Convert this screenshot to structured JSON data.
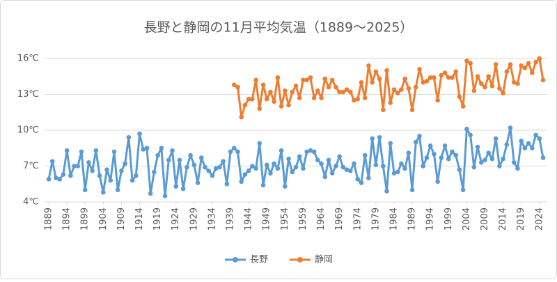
{
  "chart_data": {
    "type": "line",
    "title": "長野と静岡の11月平均気温（1889～2025）",
    "x": [
      1889,
      1890,
      1891,
      1892,
      1893,
      1894,
      1895,
      1896,
      1897,
      1898,
      1899,
      1900,
      1901,
      1902,
      1903,
      1904,
      1905,
      1906,
      1907,
      1908,
      1909,
      1910,
      1911,
      1912,
      1913,
      1914,
      1915,
      1916,
      1917,
      1918,
      1919,
      1920,
      1921,
      1922,
      1923,
      1924,
      1925,
      1926,
      1927,
      1928,
      1929,
      1930,
      1931,
      1932,
      1933,
      1934,
      1935,
      1936,
      1937,
      1938,
      1939,
      1940,
      1941,
      1942,
      1943,
      1944,
      1945,
      1946,
      1947,
      1948,
      1949,
      1950,
      1951,
      1952,
      1953,
      1954,
      1955,
      1956,
      1957,
      1958,
      1959,
      1960,
      1961,
      1962,
      1963,
      1964,
      1965,
      1966,
      1967,
      1968,
      1969,
      1970,
      1971,
      1972,
      1973,
      1974,
      1975,
      1976,
      1977,
      1978,
      1979,
      1980,
      1981,
      1982,
      1983,
      1984,
      1985,
      1986,
      1987,
      1988,
      1989,
      1990,
      1991,
      1992,
      1993,
      1994,
      1995,
      1996,
      1997,
      1998,
      1999,
      2000,
      2001,
      2002,
      2003,
      2004,
      2005,
      2006,
      2007,
      2008,
      2009,
      2010,
      2011,
      2012,
      2013,
      2014,
      2015,
      2016,
      2017,
      2018,
      2019,
      2020,
      2021,
      2022,
      2023,
      2024,
      2025
    ],
    "xlim": [
      1889,
      2025
    ],
    "xticks": [
      1889,
      1894,
      1899,
      1904,
      1909,
      1914,
      1919,
      1924,
      1929,
      1934,
      1939,
      1944,
      1949,
      1954,
      1959,
      1964,
      1969,
      1974,
      1979,
      1984,
      1989,
      1994,
      1999,
      2004,
      2009,
      2014,
      2019,
      2024
    ],
    "ylim": [
      4,
      16
    ],
    "yticks": [
      {
        "value": 4,
        "label": "4℃"
      },
      {
        "value": 7,
        "label": "7℃"
      },
      {
        "value": 10,
        "label": "10℃"
      },
      {
        "value": 13,
        "label": "13℃"
      },
      {
        "value": 16,
        "label": "16℃"
      }
    ],
    "grid": true,
    "legend": "bottom",
    "series": [
      {
        "name": "長野",
        "color": "#5b9bd5",
        "values": [
          5.9,
          7.4,
          6.0,
          5.9,
          6.3,
          8.3,
          6.2,
          7.0,
          7.0,
          8.2,
          5.0,
          7.3,
          6.6,
          8.3,
          6.2,
          4.8,
          6.7,
          5.8,
          8.2,
          5.0,
          6.6,
          7.2,
          9.4,
          5.8,
          6.2,
          9.7,
          8.4,
          8.5,
          4.7,
          6.5,
          7.9,
          8.5,
          4.5,
          7.5,
          8.3,
          5.3,
          7.5,
          5.1,
          6.9,
          7.9,
          7.1,
          5.6,
          7.7,
          6.9,
          6.6,
          6.2,
          6.8,
          6.9,
          7.4,
          5.5,
          8.2,
          8.5,
          8.2,
          5.7,
          6.3,
          6.6,
          7.0,
          6.8,
          8.9,
          5.4,
          7.1,
          6.4,
          7.2,
          6.8,
          8.3,
          5.3,
          7.6,
          6.5,
          6.9,
          7.8,
          6.8,
          8.2,
          8.3,
          8.2,
          7.5,
          7.2,
          6.1,
          7.5,
          6.4,
          7.0,
          7.8,
          6.9,
          6.7,
          6.6,
          7.2,
          5.9,
          5.6,
          7.9,
          6.0,
          9.3,
          7.1,
          9.4,
          7.0,
          4.9,
          8.9,
          6.4,
          6.5,
          7.2,
          6.8,
          8.1,
          5.0,
          9.0,
          9.5,
          7.0,
          7.7,
          8.7,
          8.0,
          5.7,
          7.7,
          8.7,
          7.6,
          8.2,
          7.9,
          6.7,
          5.0,
          10.1,
          9.6,
          6.9,
          8.6,
          7.3,
          7.5,
          8.1,
          7.6,
          9.3,
          7.0,
          7.6,
          8.8,
          10.2,
          7.3,
          6.8,
          9.1,
          8.5,
          8.9,
          8.5,
          9.6,
          9.3,
          7.7
        ]
      },
      {
        "name": "静岡",
        "color": "#ed7d31",
        "values": [
          null,
          null,
          null,
          null,
          null,
          null,
          null,
          null,
          null,
          null,
          null,
          null,
          null,
          null,
          null,
          null,
          null,
          null,
          null,
          null,
          null,
          null,
          null,
          null,
          null,
          null,
          null,
          null,
          null,
          null,
          null,
          null,
          null,
          null,
          null,
          null,
          null,
          null,
          null,
          null,
          null,
          null,
          null,
          null,
          null,
          null,
          null,
          null,
          null,
          null,
          null,
          13.8,
          13.6,
          11.1,
          12.1,
          12.6,
          12.6,
          14.2,
          11.8,
          13.8,
          12.6,
          13.2,
          12.4,
          14.4,
          12.0,
          13.3,
          12.1,
          13.2,
          13.7,
          12.7,
          14.2,
          14.2,
          14.4,
          12.7,
          13.3,
          12.7,
          14.3,
          13.6,
          14.2,
          13.6,
          13.2,
          13.2,
          13.4,
          13.2,
          12.5,
          12.6,
          14.0,
          12.7,
          15.4,
          14.0,
          14.9,
          14.3,
          11.7,
          15.0,
          12.3,
          13.4,
          13.1,
          13.4,
          14.3,
          13.5,
          11.7,
          13.6,
          15.1,
          14.0,
          14.1,
          14.4,
          14.4,
          12.5,
          14.6,
          14.8,
          14.4,
          14.4,
          14.9,
          12.8,
          12.0,
          15.8,
          15.6,
          13.3,
          14.5,
          13.9,
          13.6,
          14.5,
          13.7,
          15.5,
          13.5,
          13.1,
          14.9,
          15.5,
          14.0,
          13.9,
          15.4,
          15.2,
          15.6,
          14.8,
          15.7,
          16.0,
          14.2
        ]
      }
    ]
  }
}
